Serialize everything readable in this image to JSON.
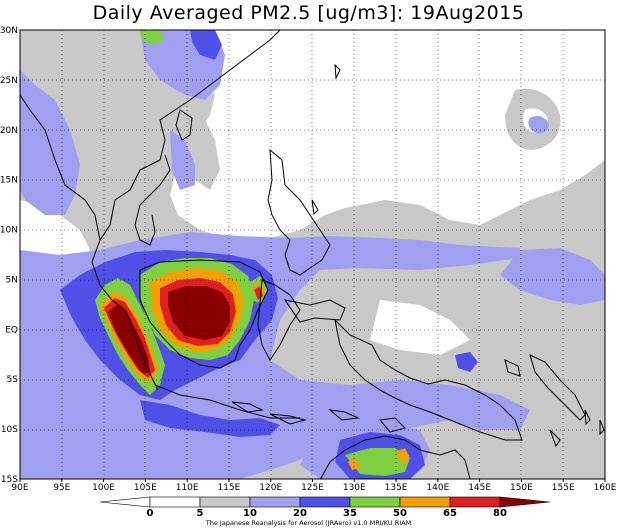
{
  "title": "Daily Averaged PM2.5 [ug/m3]: 19Aug2015",
  "credit": "The Japanese Reanalysis for Aerosol (JRAero) v1.0 MRI/KU RIAM",
  "map": {
    "lon_range": [
      90,
      160
    ],
    "lat_range": [
      -15,
      30
    ],
    "lon_ticks": [
      "90E",
      "95E",
      "100E",
      "105E",
      "110E",
      "115E",
      "120E",
      "125E",
      "130E",
      "135E",
      "140E",
      "145E",
      "150E",
      "155E",
      "160E"
    ],
    "lat_ticks": [
      "30N",
      "25N",
      "20N",
      "15N",
      "10N",
      "5N",
      "EQ",
      "5S",
      "10S",
      "15S"
    ]
  },
  "colorbar": {
    "levels": [
      "0",
      "5",
      "10",
      "20",
      "35",
      "50",
      "65",
      "80"
    ],
    "colors": [
      "#ffffff",
      "#ffffff",
      "#c8c8c8",
      "#a0a0f0",
      "#5050e8",
      "#7ed040",
      "#f0a000",
      "#e02020",
      "#8a0000"
    ]
  }
}
